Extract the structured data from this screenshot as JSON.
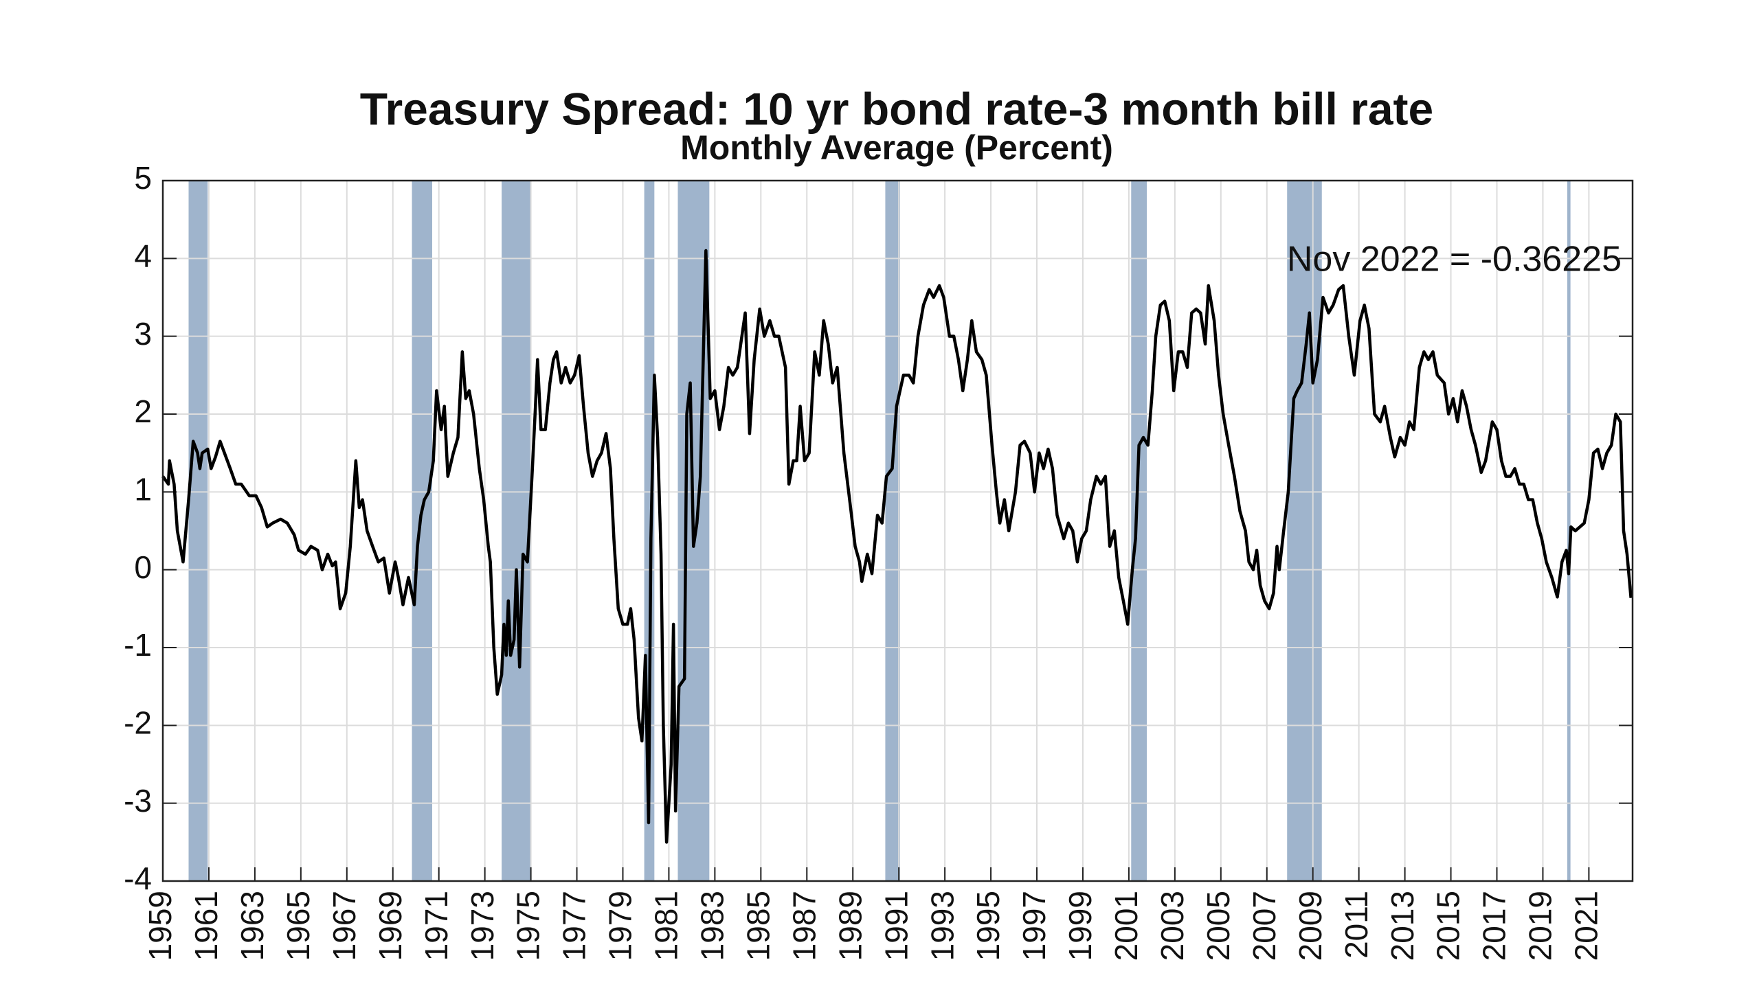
{
  "chart_data": {
    "type": "line",
    "title": "Treasury Spread: 10 yr bond rate-3 month bill rate",
    "subtitle": "Monthly Average (Percent)",
    "annotation": "Nov 2022 = -0.36225",
    "xlim": [
      1959,
      2022.9
    ],
    "xticks": [
      1959,
      1961,
      1963,
      1965,
      1967,
      1969,
      1971,
      1973,
      1975,
      1977,
      1979,
      1981,
      1983,
      1985,
      1987,
      1989,
      1991,
      1993,
      1995,
      1997,
      1999,
      2001,
      2003,
      2005,
      2007,
      2009,
      2011,
      2013,
      2015,
      2017,
      2019,
      2021
    ],
    "ylim": [
      -4,
      5
    ],
    "yticks": [
      -4,
      -3,
      -2,
      -1,
      0,
      1,
      2,
      3,
      4,
      5
    ],
    "grid": true,
    "recession_color": "#9fb4cc",
    "recessions": [
      [
        1960.12,
        1960.95
      ],
      [
        1969.83,
        1970.71
      ],
      [
        1973.73,
        1975.0
      ],
      [
        1979.93,
        1980.37
      ],
      [
        1981.39,
        1982.76
      ],
      [
        1990.41,
        1991.05
      ],
      [
        2001.1,
        2001.78
      ],
      [
        2007.88,
        2009.39
      ],
      [
        2020.06,
        2020.2
      ]
    ],
    "x": [
      1959.0,
      1959.24,
      1959.29,
      1959.49,
      1959.63,
      1959.88,
      1960.12,
      1960.32,
      1960.51,
      1960.61,
      1960.71,
      1960.95,
      1961.1,
      1961.29,
      1961.49,
      1961.68,
      1961.93,
      1962.17,
      1962.41,
      1962.76,
      1963.05,
      1963.29,
      1963.54,
      1963.78,
      1964.12,
      1964.41,
      1964.71,
      1964.9,
      1965.2,
      1965.44,
      1965.73,
      1965.93,
      1966.17,
      1966.37,
      1966.51,
      1966.71,
      1966.95,
      1967.15,
      1967.39,
      1967.54,
      1967.68,
      1967.88,
      1968.12,
      1968.37,
      1968.61,
      1968.85,
      1969.1,
      1969.24,
      1969.44,
      1969.68,
      1969.93,
      1970.07,
      1970.22,
      1970.37,
      1970.56,
      1970.76,
      1970.9,
      1971.1,
      1971.24,
      1971.39,
      1971.63,
      1971.83,
      1972.02,
      1972.17,
      1972.32,
      1972.51,
      1972.76,
      1972.95,
      1973.15,
      1973.24,
      1973.39,
      1973.54,
      1973.73,
      1973.83,
      1973.93,
      1974.02,
      1974.12,
      1974.27,
      1974.37,
      1974.51,
      1974.66,
      1974.85,
      1975.05,
      1975.2,
      1975.29,
      1975.44,
      1975.63,
      1975.83,
      1975.98,
      1976.12,
      1976.32,
      1976.51,
      1976.71,
      1976.9,
      1977.1,
      1977.29,
      1977.49,
      1977.68,
      1977.88,
      1978.07,
      1978.27,
      1978.46,
      1978.61,
      1978.8,
      1979.0,
      1979.2,
      1979.34,
      1979.49,
      1979.68,
      1979.83,
      1979.98,
      1980.12,
      1980.22,
      1980.37,
      1980.51,
      1980.66,
      1980.76,
      1980.9,
      1981.1,
      1981.2,
      1981.29,
      1981.44,
      1981.68,
      1981.78,
      1981.93,
      1982.07,
      1982.22,
      1982.37,
      1982.61,
      1982.8,
      1983.0,
      1983.2,
      1983.39,
      1983.59,
      1983.78,
      1983.98,
      1984.32,
      1984.51,
      1984.71,
      1984.95,
      1985.15,
      1985.39,
      1985.59,
      1985.78,
      1986.07,
      1986.22,
      1986.41,
      1986.56,
      1986.71,
      1986.9,
      1987.1,
      1987.34,
      1987.54,
      1987.73,
      1987.93,
      1988.12,
      1988.32,
      1988.61,
      1988.9,
      1989.1,
      1989.29,
      1989.39,
      1989.63,
      1989.83,
      1990.07,
      1990.27,
      1990.46,
      1990.71,
      1990.9,
      1991.2,
      1991.44,
      1991.63,
      1991.83,
      1992.07,
      1992.32,
      1992.51,
      1992.76,
      1992.95,
      1993.2,
      1993.39,
      1993.59,
      1993.78,
      1993.98,
      1994.17,
      1994.37,
      1994.61,
      1994.8,
      1995.05,
      1995.24,
      1995.39,
      1995.59,
      1995.78,
      1996.07,
      1996.27,
      1996.46,
      1996.71,
      1996.9,
      1997.1,
      1997.29,
      1997.49,
      1997.68,
      1997.88,
      1998.17,
      1998.37,
      1998.56,
      1998.76,
      1998.95,
      1999.15,
      1999.34,
      1999.59,
      1999.78,
      1999.98,
      2000.17,
      2000.37,
      2000.56,
      2000.76,
      2000.95,
      2001.15,
      2001.29,
      2001.44,
      2001.63,
      2001.83,
      2002.02,
      2002.17,
      2002.37,
      2002.56,
      2002.76,
      2002.95,
      2003.15,
      2003.34,
      2003.54,
      2003.73,
      2003.93,
      2004.12,
      2004.32,
      2004.46,
      2004.71,
      2004.9,
      2005.1,
      2005.34,
      2005.59,
      2005.83,
      2006.07,
      2006.22,
      2006.41,
      2006.56,
      2006.71,
      2006.9,
      2007.1,
      2007.29,
      2007.44,
      2007.54,
      2007.73,
      2007.93,
      2008.17,
      2008.32,
      2008.51,
      2008.71,
      2008.85,
      2009.0,
      2009.2,
      2009.44,
      2009.68,
      2009.88,
      2010.12,
      2010.32,
      2010.56,
      2010.8,
      2011.05,
      2011.24,
      2011.44,
      2011.68,
      2011.93,
      2012.12,
      2012.37,
      2012.56,
      2012.8,
      2013.0,
      2013.2,
      2013.39,
      2013.63,
      2013.83,
      2014.02,
      2014.22,
      2014.41,
      2014.71,
      2014.9,
      2015.1,
      2015.29,
      2015.49,
      2015.68,
      2015.88,
      2016.07,
      2016.32,
      2016.51,
      2016.8,
      2017.0,
      2017.2,
      2017.39,
      2017.59,
      2017.78,
      2017.98,
      2018.17,
      2018.37,
      2018.56,
      2018.76,
      2018.95,
      2019.15,
      2019.39,
      2019.63,
      2019.83,
      2020.02,
      2020.12,
      2020.22,
      2020.41,
      2020.61,
      2020.8,
      2021.0,
      2021.2,
      2021.39,
      2021.59,
      2021.78,
      2021.98,
      2022.17,
      2022.37,
      2022.51,
      2022.66,
      2022.83
    ],
    "series": [
      {
        "color": "#000000",
        "values": [
          1.2,
          1.1,
          1.4,
          1.1,
          0.5,
          0.1,
          0.9,
          1.65,
          1.5,
          1.3,
          1.5,
          1.55,
          1.3,
          1.45,
          1.65,
          1.5,
          1.3,
          1.1,
          1.1,
          0.95,
          0.95,
          0.8,
          0.55,
          0.6,
          0.65,
          0.6,
          0.45,
          0.25,
          0.2,
          0.3,
          0.25,
          0.0,
          0.2,
          0.05,
          0.1,
          -0.5,
          -0.3,
          0.3,
          1.4,
          0.8,
          0.9,
          0.5,
          0.3,
          0.1,
          0.15,
          -0.3,
          0.1,
          -0.1,
          -0.45,
          -0.1,
          -0.45,
          0.3,
          0.7,
          0.9,
          1.0,
          1.4,
          2.3,
          1.8,
          2.1,
          1.2,
          1.5,
          1.7,
          2.8,
          2.2,
          2.3,
          2.0,
          1.3,
          0.9,
          0.3,
          0.1,
          -1.0,
          -1.6,
          -1.35,
          -0.7,
          -1.1,
          -0.4,
          -1.1,
          -0.9,
          0.0,
          -1.25,
          0.2,
          0.1,
          1.2,
          2.1,
          2.7,
          1.8,
          1.8,
          2.4,
          2.7,
          2.8,
          2.4,
          2.6,
          2.4,
          2.5,
          2.75,
          2.1,
          1.5,
          1.2,
          1.4,
          1.5,
          1.75,
          1.3,
          0.4,
          -0.5,
          -0.7,
          -0.7,
          -0.5,
          -0.9,
          -1.9,
          -2.2,
          -1.1,
          -3.25,
          0.4,
          2.5,
          1.7,
          0.2,
          -2.0,
          -3.5,
          -2.5,
          -0.7,
          -3.1,
          -1.5,
          -1.4,
          2.0,
          2.4,
          0.3,
          0.6,
          1.2,
          4.1,
          2.2,
          2.3,
          1.8,
          2.1,
          2.6,
          2.5,
          2.6,
          3.3,
          1.75,
          2.7,
          3.35,
          3.0,
          3.2,
          3.0,
          3.0,
          2.6,
          1.1,
          1.4,
          1.4,
          2.1,
          1.4,
          1.5,
          2.8,
          2.5,
          3.2,
          2.9,
          2.4,
          2.6,
          1.5,
          0.8,
          0.3,
          0.1,
          -0.15,
          0.2,
          -0.05,
          0.7,
          0.6,
          1.2,
          1.3,
          2.1,
          2.5,
          2.5,
          2.4,
          3.0,
          3.4,
          3.6,
          3.5,
          3.65,
          3.5,
          3.0,
          3.0,
          2.7,
          2.3,
          2.7,
          3.2,
          2.8,
          2.7,
          2.5,
          1.6,
          1.0,
          0.6,
          0.9,
          0.5,
          1.0,
          1.6,
          1.65,
          1.5,
          1.0,
          1.5,
          1.3,
          1.55,
          1.3,
          0.7,
          0.4,
          0.6,
          0.5,
          0.1,
          0.4,
          0.5,
          0.9,
          1.2,
          1.1,
          1.2,
          0.3,
          0.5,
          -0.1,
          -0.4,
          -0.7,
          0.0,
          0.4,
          1.6,
          1.7,
          1.6,
          2.3,
          3.0,
          3.4,
          3.45,
          3.2,
          2.3,
          2.8,
          2.8,
          2.6,
          3.3,
          3.35,
          3.3,
          2.9,
          3.65,
          3.2,
          2.5,
          2.0,
          1.6,
          1.2,
          0.75,
          0.5,
          0.1,
          0.0,
          0.25,
          -0.2,
          -0.4,
          -0.5,
          -0.3,
          0.3,
          0.0,
          0.5,
          1.0,
          2.2,
          2.3,
          2.4,
          2.9,
          3.3,
          2.4,
          2.7,
          3.5,
          3.3,
          3.4,
          3.6,
          3.65,
          3.0,
          2.5,
          3.2,
          3.4,
          3.1,
          2.0,
          1.9,
          2.1,
          1.7,
          1.45,
          1.7,
          1.6,
          1.9,
          1.8,
          2.6,
          2.8,
          2.7,
          2.8,
          2.5,
          2.4,
          2.0,
          2.2,
          1.9,
          2.3,
          2.1,
          1.8,
          1.6,
          1.25,
          1.4,
          1.9,
          1.8,
          1.4,
          1.2,
          1.2,
          1.3,
          1.1,
          1.1,
          0.9,
          0.9,
          0.6,
          0.4,
          0.1,
          -0.1,
          -0.35,
          0.1,
          0.25,
          -0.05,
          0.55,
          0.5,
          0.55,
          0.6,
          0.9,
          1.5,
          1.55,
          1.3,
          1.5,
          1.6,
          2.0,
          1.9,
          0.5,
          0.2,
          -0.36225
        ]
      }
    ]
  }
}
